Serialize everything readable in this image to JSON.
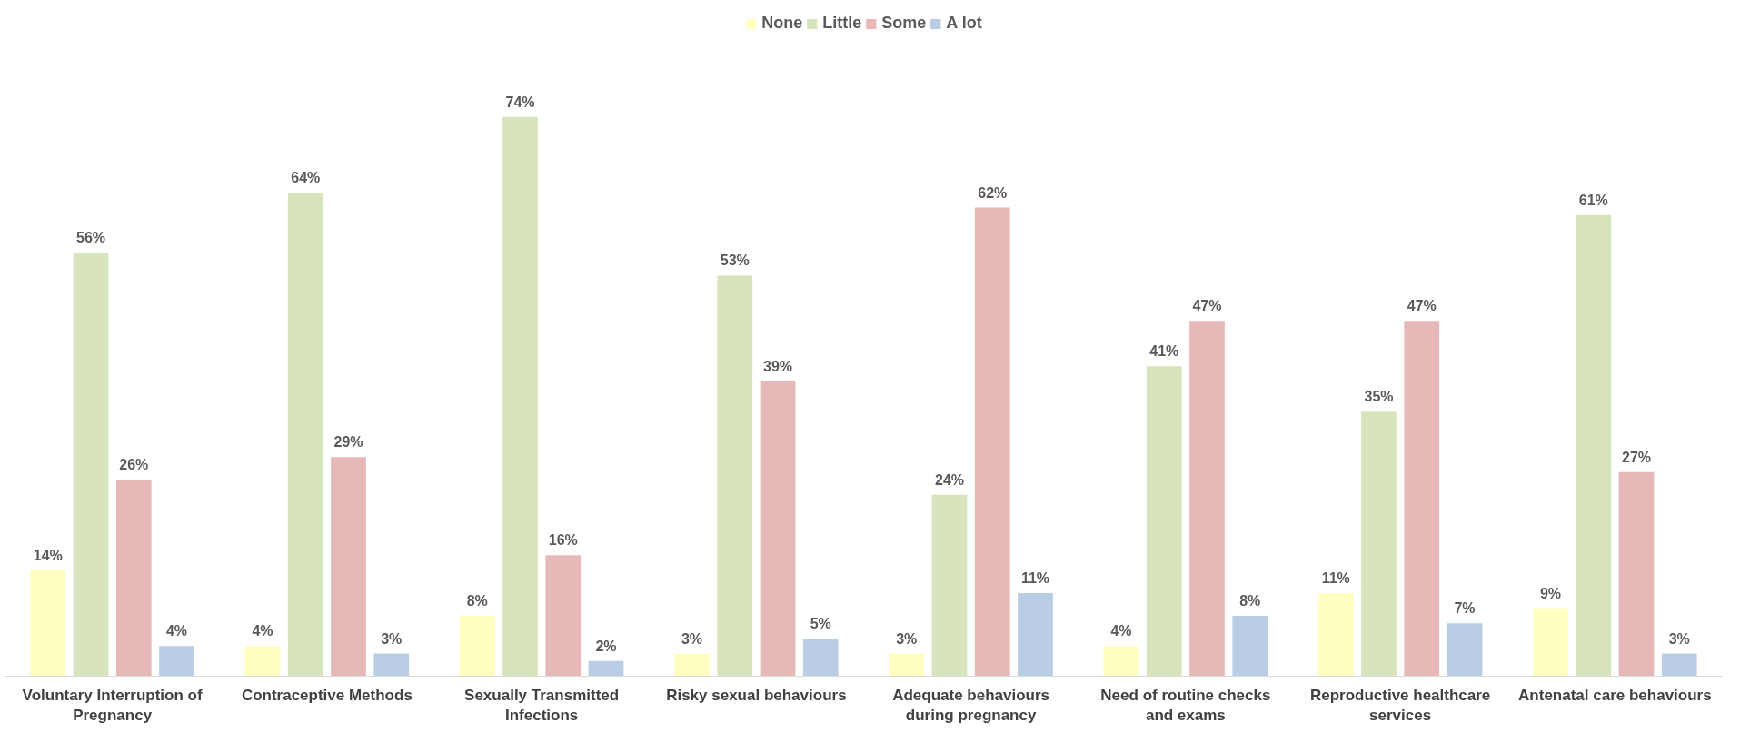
{
  "chart_data": {
    "type": "bar",
    "categories": [
      "Voluntary Interruption of Pregnancy",
      "Contraceptive Methods",
      "Sexually Transmitted Infections",
      "Risky sexual behaviours",
      "Adequate behaviours during pregnancy",
      "Need of routine checks and exams",
      "Reproductive healthcare services",
      "Antenatal care behaviours"
    ],
    "legend": "top",
    "grid": false,
    "series": [
      {
        "name": "None",
        "color": "#ffffc0",
        "values": [
          14,
          4,
          8,
          3,
          3,
          4,
          11,
          9
        ],
        "value_labels": [
          "14%",
          "4%",
          "8%",
          "3%",
          "3%",
          "4%",
          "11%",
          "9%"
        ]
      },
      {
        "name": "Little",
        "color": "#d8e4bc",
        "values": [
          56,
          64,
          74,
          53,
          24,
          41,
          35,
          61
        ],
        "value_labels": [
          "56%",
          "64%",
          "74%",
          "53%",
          "24%",
          "41%",
          "35%",
          "61%"
        ]
      },
      {
        "name": "Some",
        "color": "#e6b9b8",
        "values": [
          26,
          29,
          16,
          39,
          62,
          47,
          47,
          27
        ],
        "value_labels": [
          "26%",
          "29%",
          "16%",
          "39%",
          "62%",
          "47%",
          "47%",
          "27%"
        ]
      },
      {
        "name": "A lot",
        "color": "#b9cde5",
        "values": [
          4,
          3,
          2,
          5,
          11,
          8,
          7,
          3
        ],
        "value_labels": [
          "4%",
          "3%",
          "2%",
          "5%",
          "11%",
          "8%",
          "7%",
          "3%"
        ]
      }
    ]
  }
}
